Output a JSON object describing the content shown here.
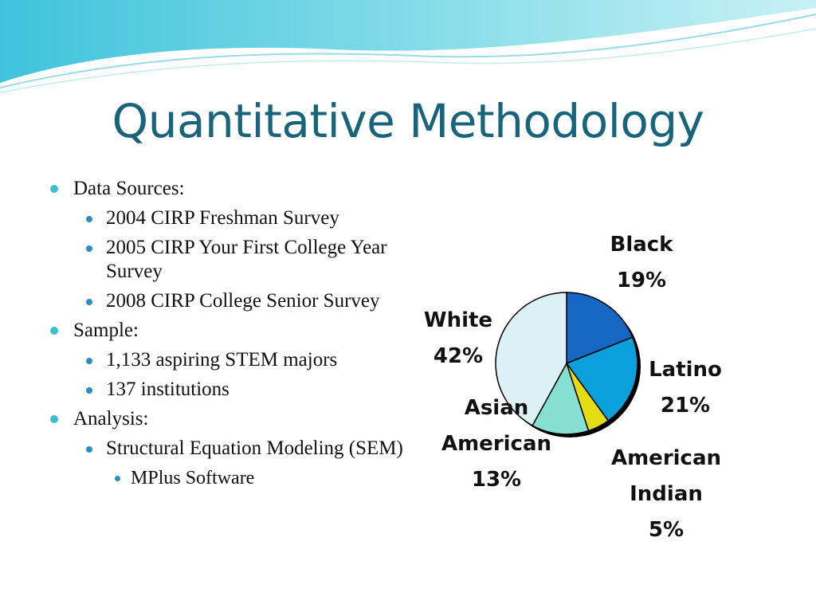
{
  "slide": {
    "title": "Quantitative Methodology"
  },
  "bullets": [
    {
      "level": 1,
      "text": "Data Sources:"
    },
    {
      "level": 2,
      "text": "2004 CIRP Freshman Survey"
    },
    {
      "level": 2,
      "text": "2005 CIRP Your First College Year Survey"
    },
    {
      "level": 2,
      "text": "2008 CIRP College Senior Survey"
    },
    {
      "level": 1,
      "text": "Sample:"
    },
    {
      "level": 2,
      "text": "1,133 aspiring STEM majors"
    },
    {
      "level": 2,
      "text": "137 institutions"
    },
    {
      "level": 1,
      "text": "Analysis:"
    },
    {
      "level": 2,
      "text": "Structural Equation Modeling (SEM)"
    },
    {
      "level": 3,
      "text": "MPlus Software"
    }
  ],
  "chart_data": {
    "type": "pie",
    "title": "",
    "start": "12 o'clock, clockwise",
    "slices": [
      {
        "label_lines": [
          "Black",
          "19%"
        ],
        "value": 19,
        "color": "#1666c4"
      },
      {
        "label_lines": [
          "Latino",
          "21%"
        ],
        "value": 21,
        "color": "#0aa0dc"
      },
      {
        "label_lines": [
          "American",
          "Indian",
          "5%"
        ],
        "value": 5,
        "color": "#e3dc12"
      },
      {
        "label_lines": [
          "Asian",
          "American",
          "13%"
        ],
        "value": 13,
        "color": "#86e0d2"
      },
      {
        "label_lines": [
          "White",
          "42%"
        ],
        "value": 42,
        "color": "#ddf2f7"
      }
    ]
  },
  "colors": {
    "title": "#17647c",
    "bullet_l1": "#3bbfd0",
    "bullet_l2": "#2a8fc0",
    "wave": "#5ccfe0"
  }
}
